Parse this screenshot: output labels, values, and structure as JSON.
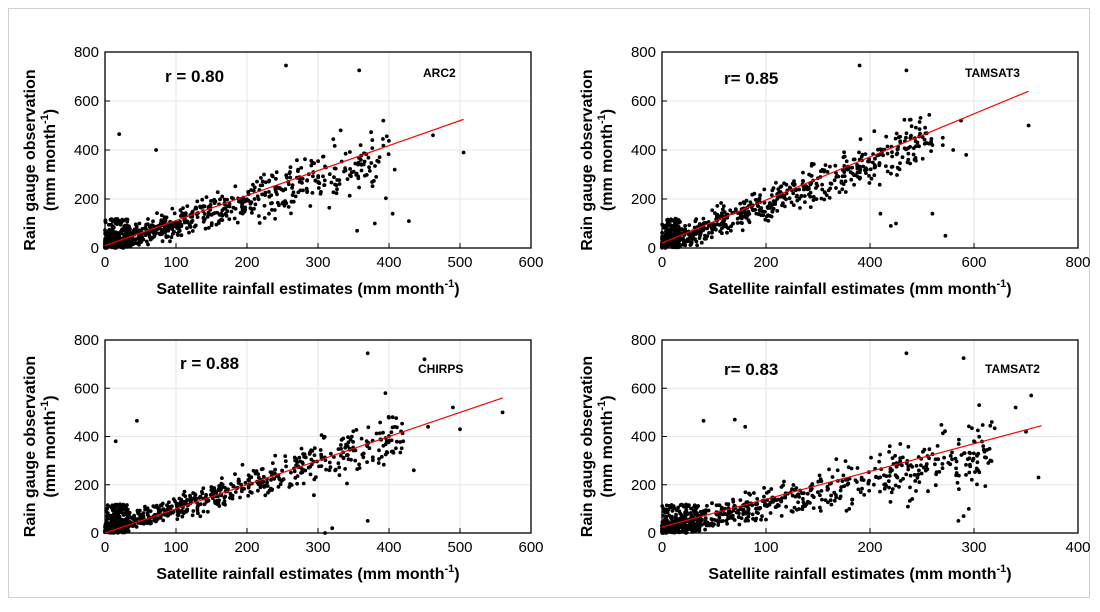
{
  "figure": {
    "panels": [
      {
        "id": "arc2",
        "product": "ARC2",
        "r_text": "r = 0.80",
        "xlabel_main": "Satellite rainfall estimates (mm month",
        "xlabel_sup": "-1",
        "xlabel_end": ")",
        "ylabel_line1": "Rain gauge observation",
        "ylabel_line2_main": "(mm month",
        "ylabel_line2_sup": "-1",
        "ylabel_line2_end": ")",
        "x_ticks": [
          "0",
          "100",
          "200",
          "300",
          "400",
          "500",
          "600"
        ],
        "y_ticks": [
          "0",
          "200",
          "400",
          "600",
          "800"
        ]
      },
      {
        "id": "tamsat3",
        "product": "TAMSAT3",
        "r_text": "r= 0.85",
        "xlabel_main": "Satellite rainfall estimates (mm month",
        "xlabel_sup": "-1",
        "xlabel_end": ")",
        "ylabel_line1": "Rain gauge observation",
        "ylabel_line2_main": "(mm month",
        "ylabel_line2_sup": "-1",
        "ylabel_line2_end": ")",
        "x_ticks": [
          "0",
          "200",
          "400",
          "600",
          "800"
        ],
        "y_ticks": [
          "0",
          "200",
          "400",
          "600",
          "800"
        ]
      },
      {
        "id": "chirps",
        "product": "CHIRPS",
        "r_text": "r = 0.88",
        "xlabel_main": "Satellite rainfall estimates (mm month",
        "xlabel_sup": "-1",
        "xlabel_end": ")",
        "ylabel_line1": "Rain gauge observation",
        "ylabel_line2_main": "(mm month",
        "ylabel_line2_sup": "-1",
        "ylabel_line2_end": ")",
        "x_ticks": [
          "0",
          "100",
          "200",
          "300",
          "400",
          "500",
          "600"
        ],
        "y_ticks": [
          "0",
          "200",
          "400",
          "600",
          "800"
        ]
      },
      {
        "id": "tamsat2",
        "product": "TAMSAT2",
        "r_text": "r= 0.83",
        "xlabel_main": "Satellite rainfall estimates (mm month",
        "xlabel_sup": "-1",
        "xlabel_end": ")",
        "ylabel_line1": "Rain gauge observation",
        "ylabel_line2_main": "(mm month",
        "ylabel_line2_sup": "-1",
        "ylabel_line2_end": ")",
        "x_ticks": [
          "0",
          "100",
          "200",
          "300",
          "400"
        ],
        "y_ticks": [
          "0",
          "200",
          "400",
          "600",
          "800"
        ]
      }
    ]
  },
  "chart_data": [
    {
      "type": "scatter",
      "title": "ARC2",
      "annotation": "r = 0.80",
      "xlabel": "Satellite rainfall estimates (mm month-1)",
      "ylabel": "Rain gauge observation (mm month-1)",
      "xlim": [
        0,
        600
      ],
      "ylim": [
        0,
        800
      ],
      "grid": true,
      "colors": {
        "points": "#000000",
        "fit": "#ff0000"
      },
      "fit_line": {
        "x": [
          0,
          505
        ],
        "y": [
          10,
          525
        ]
      },
      "points": {
        "x": [
          255,
          358,
          462,
          505,
          20,
          72,
          130,
          392,
          408,
          428,
          405,
          355,
          380,
          382,
          272,
          372,
          332,
          360
        ],
        "y": [
          745,
          725,
          460,
          390,
          465,
          400,
          190,
          520,
          320,
          110,
          140,
          70,
          100,
          290,
          320,
          330,
          480,
          420
        ]
      },
      "points_generated": {
        "count": 650,
        "x_max": 400,
        "slope": 0.92,
        "scatter": 90
      }
    },
    {
      "type": "scatter",
      "title": "TAMSAT3",
      "annotation": "r= 0.85",
      "xlabel": "Satellite rainfall estimates (mm month-1)",
      "ylabel": "Rain gauge observation (mm month-1)",
      "xlim": [
        0,
        800
      ],
      "ylim": [
        0,
        800
      ],
      "grid": true,
      "colors": {
        "points": "#000000",
        "fit": "#ff0000"
      },
      "fit_line": {
        "x": [
          0,
          705
        ],
        "y": [
          20,
          640
        ]
      },
      "points": {
        "x": [
          380,
          470,
          705,
          575,
          585,
          540,
          545,
          520,
          420,
          450,
          440,
          520,
          540,
          560
        ],
        "y": [
          745,
          725,
          500,
          520,
          380,
          420,
          50,
          140,
          140,
          100,
          90,
          420,
          450,
          400
        ]
      },
      "points_generated": {
        "count": 650,
        "x_max": 520,
        "slope": 0.85,
        "scatter": 85
      }
    },
    {
      "type": "scatter",
      "title": "CHIRPS",
      "annotation": "r = 0.88",
      "xlabel": "Satellite rainfall estimates (mm month-1)",
      "ylabel": "Rain gauge observation (mm month-1)",
      "xlim": [
        0,
        600
      ],
      "ylim": [
        0,
        800
      ],
      "grid": true,
      "colors": {
        "points": "#000000",
        "fit": "#ff0000"
      },
      "fit_line": {
        "x": [
          0,
          560
        ],
        "y": [
          0,
          560
        ]
      },
      "points": {
        "x": [
          370,
          450,
          560,
          500,
          455,
          490,
          15,
          45,
          310,
          320,
          370,
          435,
          395,
          405,
          420
        ],
        "y": [
          745,
          720,
          500,
          430,
          440,
          520,
          380,
          465,
          0,
          20,
          50,
          260,
          580,
          480,
          380
        ]
      },
      "points_generated": {
        "count": 650,
        "x_max": 420,
        "slope": 0.95,
        "scatter": 75
      }
    },
    {
      "type": "scatter",
      "title": "TAMSAT2",
      "annotation": "r= 0.83",
      "xlabel": "Satellite rainfall estimates (mm month-1)",
      "ylabel": "Rain gauge observation (mm month-1)",
      "xlim": [
        0,
        400
      ],
      "ylim": [
        0,
        800
      ],
      "grid": true,
      "colors": {
        "points": "#000000",
        "fit": "#ff0000"
      },
      "fit_line": {
        "x": [
          0,
          365
        ],
        "y": [
          25,
          445
        ]
      },
      "points": {
        "x": [
          235,
          290,
          355,
          362,
          305,
          350,
          295,
          285,
          290,
          340,
          300,
          40,
          70,
          80
        ],
        "y": [
          745,
          725,
          570,
          230,
          530,
          420,
          100,
          50,
          70,
          520,
          380,
          465,
          470,
          440
        ]
      },
      "points_generated": {
        "count": 650,
        "x_max": 320,
        "slope": 1.05,
        "scatter": 95
      }
    }
  ]
}
